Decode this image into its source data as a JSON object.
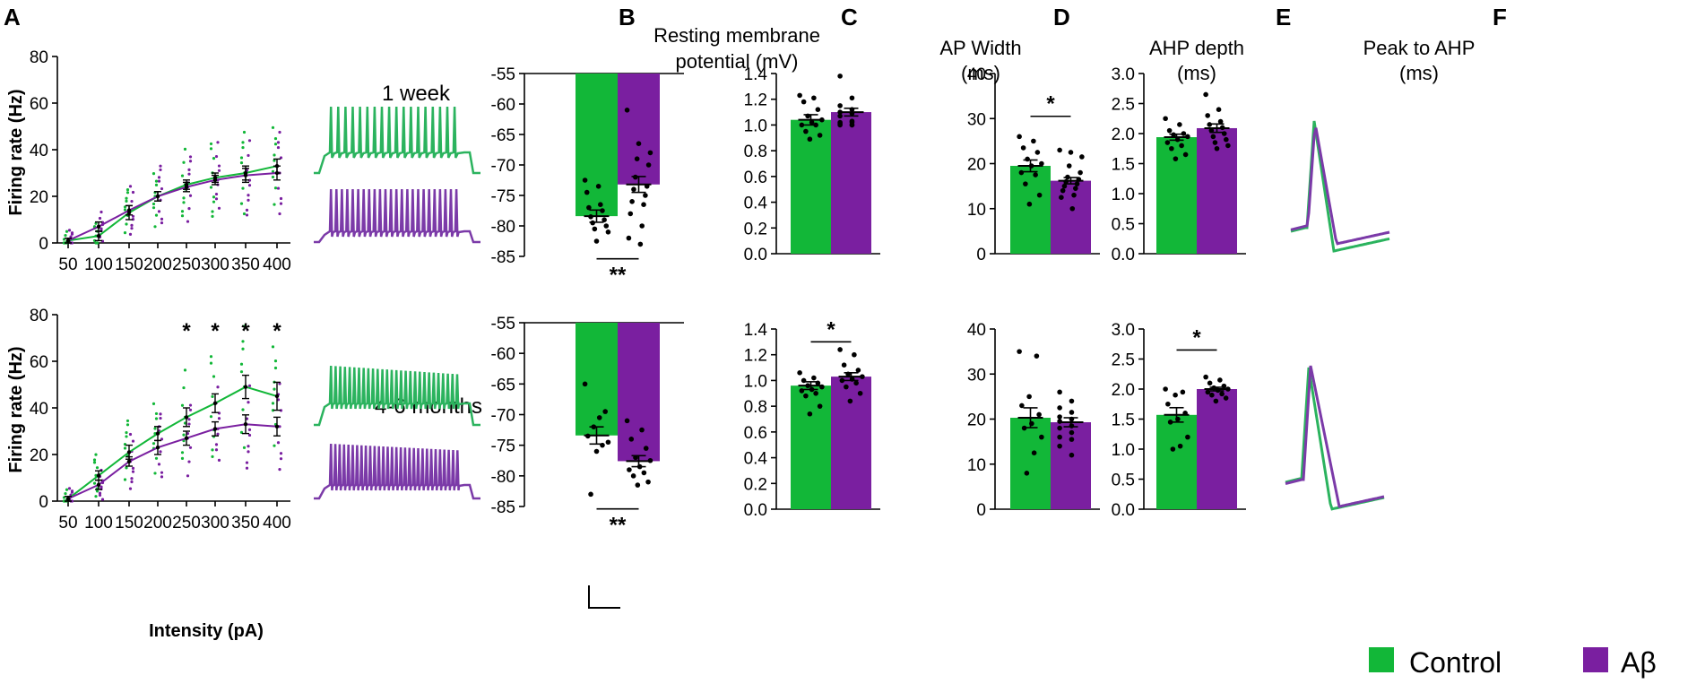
{
  "colors": {
    "control": "#12b738",
    "abeta": "#7a1fa0",
    "control_trace": "#2bb35e",
    "abeta_trace": "#7b3aa8"
  },
  "labels": {
    "A": "A",
    "B": "B",
    "C": "C",
    "D": "D",
    "E": "E",
    "F": "F",
    "week": "1 week",
    "months": "4-6 months",
    "ylabel_a": "Firing rate (Hz)",
    "xlabel_a": "Intensity (pA)",
    "title_b": [
      "Resting membrane",
      "potential (mV)"
    ],
    "title_c": [
      "AP Width",
      "(ms)"
    ],
    "title_d": [
      "AHP  depth",
      "(ms)"
    ],
    "title_e": [
      "Peak to AHP",
      "(ms)"
    ]
  },
  "legend": [
    {
      "label": "Control",
      "color": "#12b738"
    },
    {
      "label": "Aβ",
      "color": "#7a1fa0"
    }
  ],
  "chart_data": [
    {
      "id": "A1",
      "type": "line",
      "ylabel": "Firing rate (Hz)",
      "xlabel": "",
      "ylim": [
        0,
        80
      ],
      "yticks": [
        0,
        20,
        40,
        60,
        80
      ],
      "categories": [
        "50",
        "100",
        "150",
        "200",
        "250",
        "300",
        "350",
        "400"
      ],
      "series": [
        {
          "name": "Control",
          "values": [
            1,
            3,
            13,
            20,
            25,
            28,
            30,
            33
          ],
          "err": [
            1,
            2,
            3,
            2,
            2,
            2,
            3,
            3
          ]
        },
        {
          "name": "Aβ",
          "values": [
            1,
            7,
            14,
            20,
            24,
            27,
            29,
            30
          ],
          "err": [
            1,
            2,
            2,
            2,
            2,
            2,
            3,
            3
          ]
        }
      ],
      "significance": []
    },
    {
      "id": "A2",
      "type": "line",
      "ylabel": "Firing rate (Hz)",
      "xlabel": "Intensity (pA)",
      "ylim": [
        0,
        80
      ],
      "yticks": [
        0,
        20,
        40,
        60,
        80
      ],
      "categories": [
        "50",
        "100",
        "150",
        "200",
        "250",
        "300",
        "350",
        "400"
      ],
      "series": [
        {
          "name": "Control",
          "values": [
            1,
            11,
            21,
            29,
            36,
            42,
            49,
            45
          ],
          "err": [
            1,
            2,
            3,
            3,
            4,
            4,
            5,
            6
          ]
        },
        {
          "name": "Aβ",
          "values": [
            1,
            7,
            17,
            23,
            27,
            31,
            33,
            32
          ],
          "err": [
            1,
            2,
            2,
            3,
            3,
            3,
            4,
            4
          ]
        }
      ],
      "significance": [
        {
          "index": 4,
          "text": "*"
        },
        {
          "index": 5,
          "text": "*"
        },
        {
          "index": 6,
          "text": "*"
        },
        {
          "index": 7,
          "text": "*"
        }
      ]
    },
    {
      "id": "B1",
      "type": "bar",
      "title": "Resting membrane potential (mV)",
      "ylim": [
        -85,
        -55
      ],
      "yticks": [
        -55,
        -60,
        -65,
        -70,
        -75,
        -80,
        -85
      ],
      "inverted": true,
      "categories": [
        "Control",
        "Aβ"
      ],
      "values": [
        -78.4,
        -73.2
      ],
      "err": [
        1.0,
        1.3
      ],
      "points": [
        [
          -72.5,
          -73.5,
          -74.5,
          -76.5,
          -77.0,
          -77.5,
          -78.5,
          -79.0,
          -79.5,
          -80.0,
          -80.5,
          -81.0,
          -82.5
        ],
        [
          -61.0,
          -66.5,
          -68.0,
          -69.0,
          -70.0,
          -72.0,
          -73.5,
          -74.0,
          -75.0,
          -76.0,
          -76.5,
          -78.0,
          -80.0,
          -82.0,
          -83.0
        ]
      ],
      "significance": [
        {
          "text": "**",
          "value": -85.4,
          "pos": "below"
        }
      ]
    },
    {
      "id": "B2",
      "type": "bar",
      "ylim": [
        -85,
        -55
      ],
      "yticks": [
        -55,
        -60,
        -65,
        -70,
        -75,
        -80,
        -85
      ],
      "inverted": true,
      "categories": [
        "Control",
        "Aβ"
      ],
      "values": [
        -73.4,
        -77.6
      ],
      "err": [
        1.4,
        0.9
      ],
      "points": [
        [
          -65.0,
          -69.5,
          -70.5,
          -72.0,
          -73.5,
          -74.5,
          -75.0,
          -76.0,
          -83.0
        ],
        [
          -71.0,
          -72.5,
          -74.0,
          -75.5,
          -77.0,
          -77.5,
          -78.5,
          -79.0,
          -79.5,
          -80.0,
          -81.0,
          -81.5
        ]
      ],
      "significance": [
        {
          "text": "**",
          "value": -85.4,
          "pos": "below"
        }
      ]
    },
    {
      "id": "C1",
      "type": "bar",
      "title": "AP Width (ms)",
      "ylim": [
        0,
        1.4
      ],
      "yticks": [
        0,
        0.2,
        0.4,
        0.6,
        0.8,
        1.0,
        1.2,
        1.4
      ],
      "categories": [
        "Control",
        "Aβ"
      ],
      "values": [
        1.04,
        1.1
      ],
      "err": [
        0.04,
        0.03
      ],
      "points": [
        [
          1.23,
          1.21,
          1.18,
          1.12,
          1.07,
          1.04,
          1.02,
          1.0,
          1.0,
          0.95,
          0.92,
          0.89
        ],
        [
          1.38,
          1.21,
          1.15,
          1.12,
          1.1,
          1.09,
          1.07,
          1.03,
          1.02,
          1.02,
          1.01,
          1.0,
          1.0,
          1.0
        ]
      ],
      "significance": []
    },
    {
      "id": "C2",
      "type": "bar",
      "ylim": [
        0,
        1.4
      ],
      "yticks": [
        0,
        0.2,
        0.4,
        0.6,
        0.8,
        1.0,
        1.2,
        1.4
      ],
      "categories": [
        "Control",
        "Aβ"
      ],
      "values": [
        0.96,
        1.03
      ],
      "err": [
        0.03,
        0.03
      ],
      "points": [
        [
          1.06,
          1.02,
          1.0,
          0.98,
          0.96,
          0.95,
          0.93,
          0.92,
          0.9,
          0.88,
          0.8,
          0.74
        ],
        [
          1.24,
          1.2,
          1.12,
          1.08,
          1.05,
          1.03,
          1.01,
          1.0,
          0.98,
          0.95,
          0.9,
          0.84
        ]
      ],
      "significance": [
        {
          "text": "*",
          "value": 1.3,
          "pos": "above"
        }
      ]
    },
    {
      "id": "D1",
      "type": "bar",
      "title": "AHP  depth (ms)",
      "ylim": [
        0,
        40
      ],
      "yticks": [
        0,
        10,
        20,
        30,
        40
      ],
      "categories": [
        "Control",
        "Aβ"
      ],
      "values": [
        19.5,
        16.2
      ],
      "err": [
        1.3,
        0.7
      ],
      "points": [
        [
          26.0,
          25.0,
          23.5,
          22.5,
          21.0,
          20.0,
          19.5,
          18.0,
          17.5,
          15.5,
          13.0,
          11.0
        ],
        [
          23.0,
          22.5,
          21.5,
          19.5,
          18.0,
          17.0,
          16.5,
          16.0,
          15.5,
          15.0,
          14.5,
          14.0,
          13.0,
          12.5,
          10.0
        ]
      ],
      "significance": [
        {
          "text": "*",
          "value": 30.5,
          "pos": "above"
        }
      ]
    },
    {
      "id": "D2",
      "type": "bar",
      "ylim": [
        0,
        40
      ],
      "yticks": [
        0,
        10,
        20,
        30,
        40
      ],
      "categories": [
        "Control",
        "Aβ"
      ],
      "values": [
        20.3,
        19.3
      ],
      "err": [
        2.2,
        1.0
      ],
      "points": [
        [
          35.0,
          34.0,
          25.0,
          23.0,
          21.0,
          19.0,
          18.0,
          16.0,
          12.5,
          8.0
        ],
        [
          26.0,
          24.0,
          22.5,
          21.5,
          20.5,
          20.0,
          19.5,
          18.5,
          18.0,
          17.0,
          16.0,
          15.5,
          14.0,
          12.0
        ]
      ],
      "significance": []
    },
    {
      "id": "E1",
      "type": "bar",
      "title": "Peak to AHP (ms)",
      "ylim": [
        0,
        3.0
      ],
      "yticks": [
        0,
        0.5,
        1.0,
        1.5,
        2.0,
        2.5,
        3.0
      ],
      "categories": [
        "Control",
        "Aβ"
      ],
      "values": [
        1.94,
        2.09
      ],
      "err": [
        0.05,
        0.07
      ],
      "points": [
        [
          2.25,
          2.15,
          2.05,
          2.0,
          1.98,
          1.95,
          1.9,
          1.85,
          1.8,
          1.75,
          1.65,
          1.58
        ],
        [
          2.65,
          2.4,
          2.3,
          2.2,
          2.15,
          2.1,
          2.05,
          2.0,
          1.95,
          1.9,
          1.85,
          1.8,
          1.75
        ]
      ],
      "significance": []
    },
    {
      "id": "E2",
      "type": "bar",
      "ylim": [
        0,
        3.0
      ],
      "yticks": [
        0,
        0.5,
        1.0,
        1.5,
        2.0,
        2.5,
        3.0
      ],
      "categories": [
        "Control",
        "Aβ"
      ],
      "values": [
        1.57,
        2.0
      ],
      "err": [
        0.12,
        0.03
      ],
      "points": [
        [
          2.0,
          1.95,
          1.9,
          1.75,
          1.6,
          1.5,
          1.45,
          1.2,
          1.05,
          1.0
        ],
        [
          2.2,
          2.15,
          2.1,
          2.05,
          2.02,
          2.0,
          1.98,
          1.95,
          1.92,
          1.9,
          1.85,
          1.8
        ]
      ],
      "significance": [
        {
          "text": "*",
          "value": 2.65,
          "pos": "above"
        }
      ]
    }
  ]
}
